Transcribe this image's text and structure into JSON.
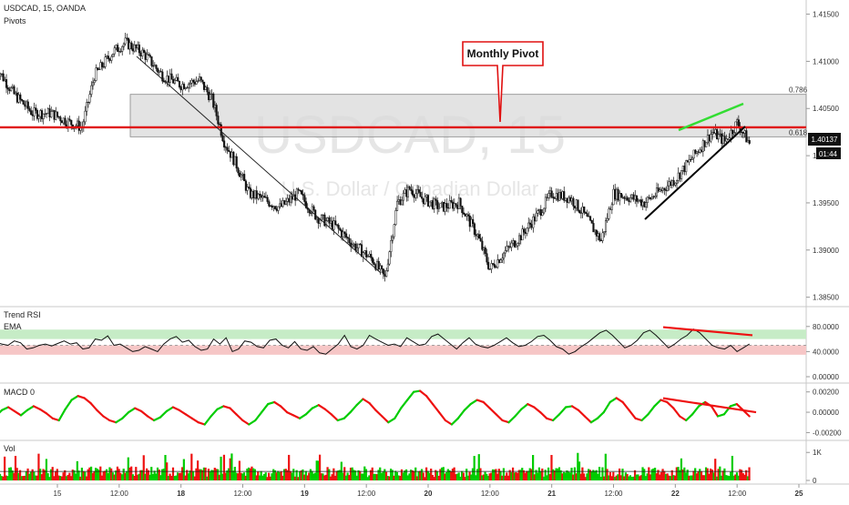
{
  "header": {
    "symbol_line": "USDCAD, 15, OANDA",
    "indicator": "Pivots"
  },
  "watermark": {
    "symbol": "USDCAD, 15",
    "description": "U.S. Dollar / Canadian Dollar"
  },
  "callout": {
    "label": "Monthly Pivot"
  },
  "price_badge": {
    "price": "1.40137",
    "countdown": "01:44"
  },
  "panes": {
    "rsi": {
      "label1": "Trend RSI",
      "label2": "EMA"
    },
    "macd": {
      "label": "MACD 0"
    },
    "vol": {
      "label": "Vol"
    }
  },
  "colors": {
    "bull": "#00cc00",
    "bear": "#ee1111",
    "pivot": "#e01010",
    "band": "#cccccc",
    "axis_text": "#333333"
  },
  "chart_data": [
    {
      "type": "line",
      "pane": "price",
      "title": "USDCAD, 15, OANDA",
      "ylim": [
        1.384,
        1.4165
      ],
      "y_ticks": [
        "1.41500",
        "1.41000",
        "1.40500",
        "1.40000",
        "1.39500",
        "1.39000",
        "1.38500"
      ],
      "x_ticks": [
        "15",
        "12:00",
        "18",
        "12:00",
        "19",
        "12:00",
        "20",
        "12:00",
        "21",
        "12:00",
        "22",
        "12:00",
        "25"
      ],
      "x_index_range": [
        0,
        130
      ],
      "x_tick_index": [
        10,
        20,
        30,
        40,
        50,
        60,
        70,
        80,
        90,
        100,
        110,
        120,
        130
      ],
      "close_path": [
        [
          0,
          1.4095
        ],
        [
          3,
          1.4065
        ],
        [
          6,
          1.4045
        ],
        [
          9,
          1.4045
        ],
        [
          12,
          1.4035
        ],
        [
          14,
          1.403
        ],
        [
          16,
          1.4085
        ],
        [
          19,
          1.411
        ],
        [
          21,
          1.412
        ],
        [
          24,
          1.4108
        ],
        [
          27,
          1.4085
        ],
        [
          30,
          1.4075
        ],
        [
          33,
          1.408
        ],
        [
          35,
          1.406
        ],
        [
          37,
          1.4015
        ],
        [
          39,
          1.399
        ],
        [
          41,
          1.396
        ],
        [
          43,
          1.3955
        ],
        [
          46,
          1.3945
        ],
        [
          49,
          1.396
        ],
        [
          52,
          1.3935
        ],
        [
          55,
          1.3925
        ],
        [
          58,
          1.3905
        ],
        [
          61,
          1.389
        ],
        [
          63,
          1.387
        ],
        [
          65,
          1.395
        ],
        [
          67,
          1.3965
        ],
        [
          69,
          1.3955
        ],
        [
          72,
          1.3945
        ],
        [
          75,
          1.395
        ],
        [
          78,
          1.3915
        ],
        [
          80,
          1.388
        ],
        [
          82,
          1.3895
        ],
        [
          85,
          1.3915
        ],
        [
          88,
          1.394
        ],
        [
          90,
          1.396
        ],
        [
          93,
          1.3955
        ],
        [
          95,
          1.394
        ],
        [
          98,
          1.391
        ],
        [
          100,
          1.396
        ],
        [
          103,
          1.3955
        ],
        [
          105,
          1.395
        ],
        [
          107,
          1.396
        ],
        [
          110,
          1.3975
        ],
        [
          113,
          1.4
        ],
        [
          116,
          1.4025
        ],
        [
          118,
          1.4015
        ],
        [
          120,
          1.4035
        ],
        [
          122,
          1.4013
        ]
      ],
      "levels": [
        {
          "name": "0.786",
          "value": 1.4065
        },
        {
          "name": "0.618",
          "value": 1.402
        }
      ],
      "pivot_level": 1.403,
      "last_price": 1.40137,
      "annotations": [
        "Monthly Pivot"
      ]
    },
    {
      "type": "line",
      "pane": "rsi",
      "series_names": [
        "Trend RSI",
        "EMA"
      ],
      "ylim": [
        0,
        100
      ],
      "y_ticks": [
        "80.0000",
        "40.0000",
        "0.00000"
      ],
      "bands": {
        "upper": [
          60,
          75
        ],
        "lower": [
          35,
          50
        ]
      },
      "values": [
        55,
        52,
        50,
        57,
        54,
        44,
        46,
        50,
        52,
        49,
        53,
        57,
        52,
        54,
        44,
        46,
        60,
        58,
        65,
        50,
        52,
        46,
        40,
        42,
        48,
        44,
        40,
        52,
        60,
        64,
        55,
        58,
        48,
        42,
        44,
        60,
        52,
        62,
        40,
        44,
        57,
        55,
        48,
        46,
        58,
        60,
        50,
        46,
        56,
        44,
        42,
        48,
        38,
        36,
        44,
        52,
        66,
        48,
        44,
        50,
        66,
        60,
        55,
        50,
        52,
        48,
        62,
        56,
        50,
        52,
        64,
        68,
        60,
        52,
        44,
        54,
        62,
        52,
        48,
        46,
        50,
        56,
        62,
        54,
        48,
        50,
        56,
        64,
        66,
        58,
        48,
        44,
        36,
        40,
        48,
        54,
        62,
        70,
        74,
        66,
        56,
        46,
        50,
        58,
        70,
        74,
        66,
        56,
        46,
        52,
        60,
        66,
        76,
        70,
        60,
        50,
        46,
        44,
        50,
        40,
        46,
        52
      ],
      "divergence": [
        76,
        66
      ]
    },
    {
      "type": "line",
      "pane": "macd",
      "series_names": [
        "MACD 0"
      ],
      "ylim": [
        -0.0025,
        0.0026
      ],
      "y_ticks": [
        "0.00200",
        "0.00000",
        "-0.00200"
      ],
      "values": [
        -0.0004,
        0.0002,
        0.0005,
        0.0001,
        -0.0003,
        0.0002,
        0.0006,
        0.0003,
        -0.0001,
        -0.0006,
        -0.0008,
        0.0003,
        0.0012,
        0.0016,
        0.0014,
        0.0009,
        0.0002,
        -0.0004,
        -0.0008,
        -0.001,
        -0.0006,
        0.0,
        0.0004,
        0.0001,
        -0.0004,
        -0.0008,
        -0.0005,
        0.0001,
        0.0005,
        0.0002,
        -0.0002,
        -0.0006,
        -0.001,
        -0.0012,
        -0.0004,
        0.0003,
        0.0006,
        0.0004,
        -0.0002,
        -0.0008,
        -0.0012,
        -0.0008,
        0.0,
        0.0008,
        0.001,
        0.0006,
        0.0,
        -0.0003,
        -0.0006,
        -0.0002,
        0.0004,
        0.0007,
        0.0003,
        -0.0002,
        -0.0008,
        -0.0006,
        0.0,
        0.0007,
        0.0013,
        0.0009,
        0.0002,
        -0.0004,
        -0.001,
        -0.0006,
        0.0004,
        0.0012,
        0.002,
        0.0021,
        0.0016,
        0.0008,
        0.0,
        -0.0008,
        -0.0012,
        -0.0006,
        0.0002,
        0.0008,
        0.0012,
        0.001,
        0.0004,
        -0.0002,
        -0.0008,
        -0.001,
        -0.0004,
        0.0003,
        0.0008,
        0.0005,
        0.0,
        -0.0006,
        -0.0008,
        -0.0002,
        0.0005,
        0.0006,
        0.0002,
        -0.0004,
        -0.001,
        -0.0006,
        0.0,
        0.001,
        0.0014,
        0.001,
        0.0002,
        -0.0006,
        -0.0008,
        -0.0002,
        0.0006,
        0.0012,
        0.001,
        0.0004,
        -0.0004,
        -0.0008,
        -0.0002,
        0.0006,
        0.001,
        0.0006,
        -0.0004,
        -0.0002,
        0.0006,
        0.0008,
        0.0002,
        -0.0004
      ],
      "divergence": [
        0.0012,
        0.0
      ]
    },
    {
      "type": "bar",
      "pane": "vol",
      "series_names": [
        "Vol"
      ],
      "ylim": [
        0,
        1300
      ],
      "y_ticks": [
        "1K",
        "0"
      ],
      "average": 320
    }
  ]
}
